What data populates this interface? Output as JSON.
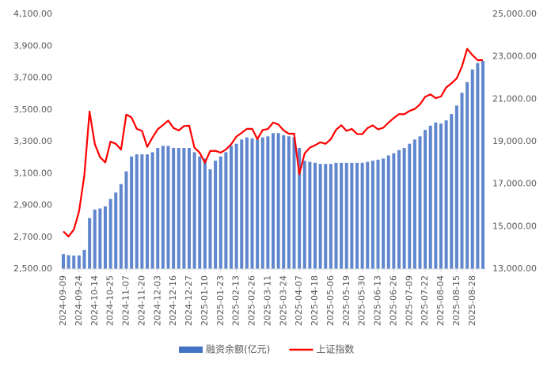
{
  "chart_data": {
    "type": "bar-line",
    "categories": [
      "2024-09-09",
      null,
      null,
      "2024-09-24",
      null,
      null,
      "2024-10-14",
      null,
      null,
      "2024-10-25",
      null,
      null,
      "2024-11-07",
      null,
      null,
      "2024-11-20",
      null,
      null,
      "2024-12-03",
      null,
      null,
      "2024-12-16",
      null,
      null,
      "2024-12-27",
      null,
      null,
      "2025-01-10",
      null,
      null,
      "2025-01-23",
      null,
      null,
      "2025-02-13",
      null,
      null,
      "2025-02-26",
      null,
      null,
      "2025-03-11",
      null,
      null,
      "2025-03-24",
      null,
      null,
      "2025-04-07",
      null,
      null,
      "2025-04-18",
      null,
      null,
      "2025-05-06",
      null,
      null,
      "2025-05-19",
      null,
      null,
      "2025-05-30",
      null,
      null,
      "2025-06-13",
      null,
      null,
      "2025-06-26",
      null,
      null,
      "2025-07-09",
      null,
      null,
      "2025-07-22",
      null,
      null,
      "2025-08-04",
      null,
      null,
      "2025-08-15",
      null,
      null,
      "2025-08-28",
      null,
      null
    ],
    "series": [
      {
        "name": "融资余额(亿元)",
        "type": "bar",
        "axis": "y2",
        "color": "#4472c4",
        "values": [
          13700,
          13650,
          13630,
          13640,
          13900,
          15400,
          15800,
          15850,
          15950,
          16300,
          16600,
          17000,
          17600,
          18300,
          18400,
          18400,
          18400,
          18500,
          18700,
          18800,
          18800,
          18700,
          18700,
          18700,
          18700,
          18500,
          18300,
          18200,
          17700,
          18100,
          18300,
          18500,
          18800,
          18900,
          19100,
          19200,
          19150,
          19100,
          19200,
          19250,
          19400,
          19400,
          19300,
          19250,
          19200,
          18700,
          18100,
          18050,
          18000,
          17950,
          17950,
          17950,
          18000,
          18000,
          18000,
          18000,
          18000,
          18000,
          18050,
          18100,
          18150,
          18200,
          18350,
          18450,
          18600,
          18700,
          18900,
          19100,
          19250,
          19550,
          19750,
          19900,
          19850,
          20000,
          20300,
          20700,
          21300,
          21800,
          22400,
          22700,
          22800
        ]
      },
      {
        "name": "上证指数",
        "type": "line",
        "color": "#ff0000",
        "values": [
          2736,
          2704,
          2748,
          2863,
          3087,
          3489,
          3284,
          3202,
          3169,
          3300,
          3286,
          3250,
          3470,
          3452,
          3380,
          3367,
          3267,
          3326,
          3378,
          3404,
          3432,
          3386,
          3370,
          3398,
          3400,
          3262,
          3230,
          3168,
          3241,
          3242,
          3231,
          3251,
          3283,
          3332,
          3355,
          3380,
          3380,
          3316,
          3373,
          3379,
          3420,
          3408,
          3370,
          3349,
          3350,
          3096,
          3226,
          3262,
          3277,
          3296,
          3286,
          3316,
          3374,
          3403,
          3367,
          3380,
          3348,
          3347,
          3385,
          3402,
          3377,
          3387,
          3420,
          3448,
          3473,
          3472,
          3493,
          3505,
          3534,
          3581,
          3597,
          3573,
          3583,
          3640,
          3666,
          3697,
          3771,
          3883,
          3843,
          3812,
          3812
        ]
      }
    ],
    "ylim": [
      2500,
      4100
    ],
    "yticks": [
      {
        "value": 2500,
        "label": "2,500.00"
      },
      {
        "value": 2700,
        "label": "2,700.00"
      },
      {
        "value": 2900,
        "label": "2,900.00"
      },
      {
        "value": 3100,
        "label": "3,100.00"
      },
      {
        "value": 3300,
        "label": "3,300.00"
      },
      {
        "value": 3500,
        "label": "3,500.00"
      },
      {
        "value": 3700,
        "label": "3,700.00"
      },
      {
        "value": 3900,
        "label": "3,900.00"
      },
      {
        "value": 4100,
        "label": "4,100.00"
      }
    ],
    "y2lim": [
      13000,
      25000
    ],
    "y2ticks": [
      {
        "value": 13000,
        "label": "13,000.00"
      },
      {
        "value": 15000,
        "label": "15,000.00"
      },
      {
        "value": 17000,
        "label": "17,000.00"
      },
      {
        "value": 19000,
        "label": "19,000.00"
      },
      {
        "value": 21000,
        "label": "21,000.00"
      },
      {
        "value": 23000,
        "label": "23,000.00"
      },
      {
        "value": 25000,
        "label": "25,000.00"
      }
    ],
    "legend": "bottom"
  }
}
